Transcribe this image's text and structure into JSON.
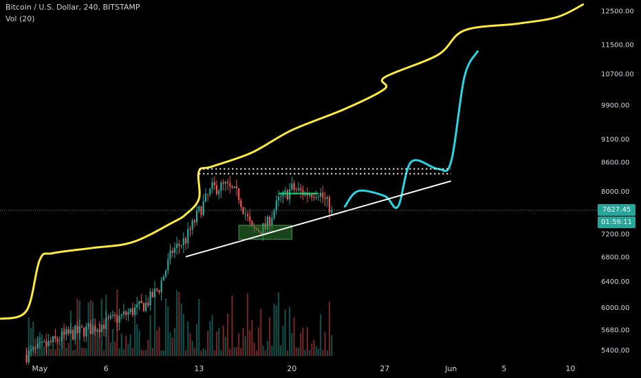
{
  "legend": {
    "symbol_line": "Bitcoin / U.S. Dollar, 240, BITSTAMP",
    "indicator": "Vol (20)"
  },
  "price_tags": {
    "last_price": "7627.45",
    "countdown": "01:59:11"
  },
  "colors": {
    "background": "#000000",
    "up_candle": "#26a69a",
    "down_candle": "#ef5350",
    "envelope_line": "#ffeb3b",
    "projection_line": "#26d7e6",
    "trend_line": "#ffffff",
    "range_line": "#00e676",
    "zone_fill": "#2e7d32",
    "price_line": "#26a69a",
    "axis_text": "#d1d4dc"
  },
  "chart_data": {
    "type": "candlestick",
    "y_axis": {
      "scale": "log",
      "range": [
        5320,
        12700
      ],
      "ticks": [
        "12500.00",
        "11500.00",
        "10700.00",
        "9900.00",
        "9100.00",
        "8600.00",
        "8000.00",
        "7200.00",
        "6800.00",
        "6400.00",
        "6000.00",
        "5680.00",
        "5400.00"
      ]
    },
    "x_axis": {
      "ticks": [
        "May",
        "6",
        "13",
        "20",
        "27",
        "Jun",
        "5",
        "10"
      ],
      "tick_dates": [
        "2019-05-01",
        "2019-05-06",
        "2019-05-13",
        "2019-05-20",
        "2019-05-27",
        "2019-06-01",
        "2019-06-05",
        "2019-06-10"
      ],
      "range": [
        "2019-04-28",
        "2019-06-12"
      ]
    },
    "candles": {
      "interval": "240",
      "start": "2019-04-30",
      "end": "2019-05-23",
      "last_close": 7627.45,
      "anchor_closes": [
        [
          "2019-04-30",
          5330
        ],
        [
          "2019-05-03",
          5600
        ],
        [
          "2019-05-05",
          5700
        ],
        [
          "2019-05-07",
          5850
        ],
        [
          "2019-05-09",
          6050
        ],
        [
          "2019-05-10",
          6300
        ],
        [
          "2019-05-11",
          6900
        ],
        [
          "2019-05-12",
          7100
        ],
        [
          "2019-05-13",
          7600
        ],
        [
          "2019-05-14",
          8050
        ],
        [
          "2019-05-15",
          8100
        ],
        [
          "2019-05-16",
          7900
        ],
        [
          "2019-05-17",
          7250
        ],
        [
          "2019-05-18",
          7300
        ],
        [
          "2019-05-19",
          7800
        ],
        [
          "2019-05-20",
          8050
        ],
        [
          "2019-05-21",
          7950
        ],
        [
          "2019-05-22",
          8000
        ],
        [
          "2019-05-23",
          7627.45
        ]
      ]
    },
    "envelope_line": [
      [
        "2019-04-28",
        5830
      ],
      [
        "2019-04-30",
        5950
      ],
      [
        "2019-05-01",
        6750
      ],
      [
        "2019-05-02",
        6860
      ],
      [
        "2019-05-05",
        6950
      ],
      [
        "2019-05-08",
        7050
      ],
      [
        "2019-05-11",
        7400
      ],
      [
        "2019-05-12",
        7550
      ],
      [
        "2019-05-13",
        7850
      ],
      [
        "2019-05-13",
        8400
      ],
      [
        "2019-05-14",
        8500
      ],
      [
        "2019-05-17",
        8800
      ],
      [
        "2019-05-20",
        9300
      ],
      [
        "2019-05-24",
        9800
      ],
      [
        "2019-05-27",
        10300
      ],
      [
        "2019-05-27",
        10600
      ],
      [
        "2019-05-31",
        11200
      ],
      [
        "2019-06-02",
        11900
      ],
      [
        "2019-06-06",
        12100
      ],
      [
        "2019-06-09",
        12300
      ],
      [
        "2019-06-11",
        12700
      ]
    ],
    "projection_line": [
      [
        "2019-05-24",
        7700
      ],
      [
        "2019-05-25",
        8000
      ],
      [
        "2019-05-27",
        7900
      ],
      [
        "2019-05-28",
        7700
      ],
      [
        "2019-05-29",
        8600
      ],
      [
        "2019-05-31",
        8450
      ],
      [
        "2019-06-01",
        8600
      ],
      [
        "2019-06-02",
        10600
      ],
      [
        "2019-06-03",
        11300
      ]
    ],
    "support_trendline": [
      [
        "2019-05-12",
        6800
      ],
      [
        "2019-06-01",
        8200
      ]
    ],
    "resistance_levels": [
      {
        "price": 8450,
        "from": "2019-05-13",
        "to": "2019-06-01"
      },
      {
        "price": 8350,
        "from": "2019-05-13",
        "to": "2019-06-01"
      }
    ],
    "range_box": {
      "price": 7950,
      "from": "2019-05-19",
      "to": "2019-05-22"
    },
    "support_zone": {
      "from": "2019-05-16",
      "to": "2019-05-20",
      "low": 7100,
      "high": 7350
    },
    "volume": {
      "label": "Vol (20)",
      "style": "histogram at bottom of pane"
    }
  }
}
